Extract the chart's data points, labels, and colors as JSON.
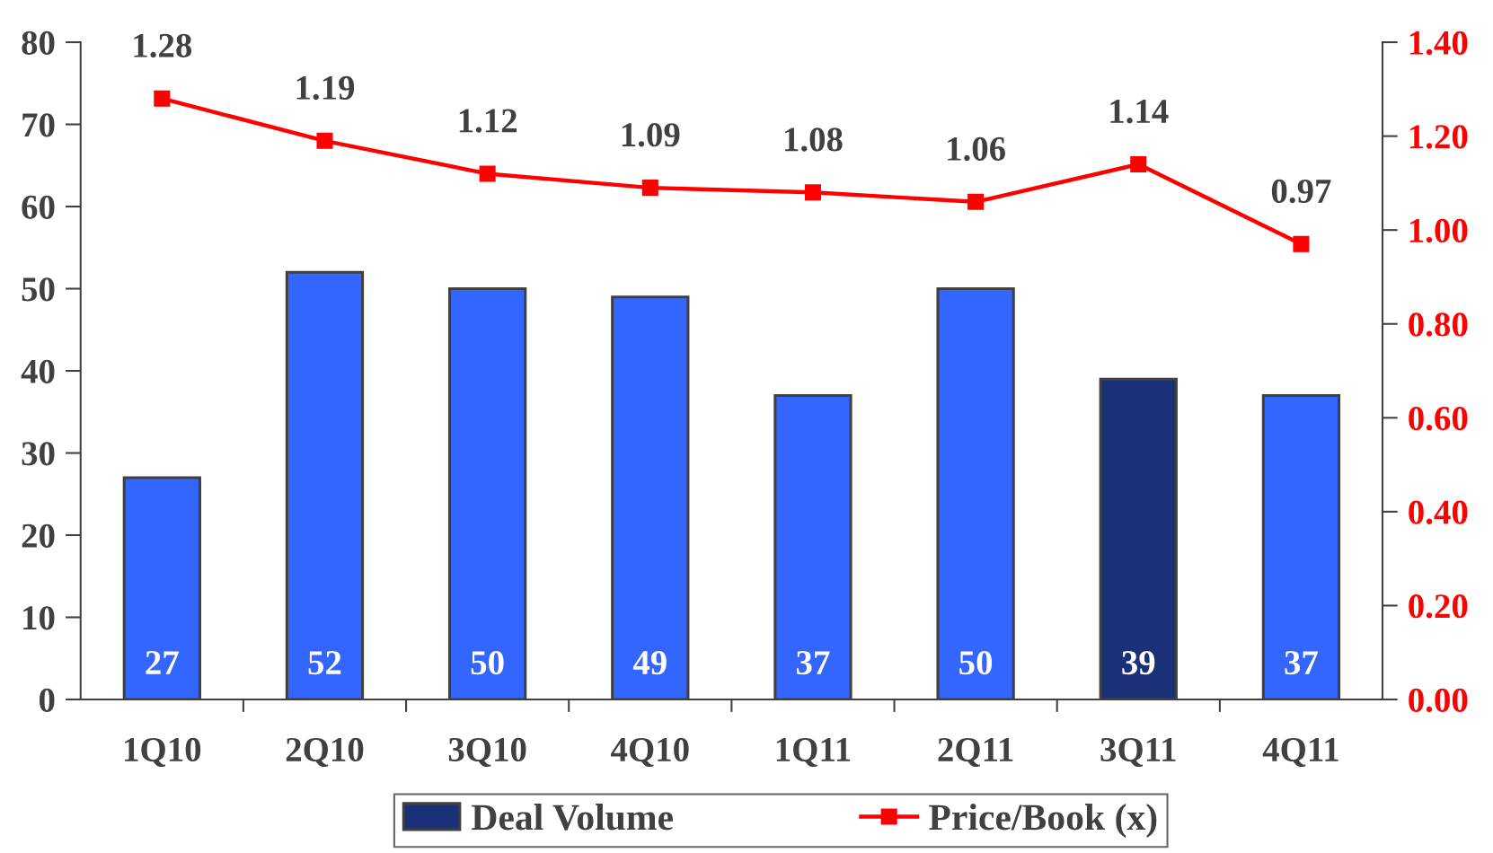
{
  "chart_data": {
    "type": "bar",
    "categories": [
      "1Q10",
      "2Q10",
      "3Q10",
      "4Q10",
      "1Q11",
      "2Q11",
      "3Q11",
      "4Q11"
    ],
    "series": [
      {
        "name": "Deal Volume",
        "color": "#1a3078",
        "colors": [
          "#3366ff",
          "#3366ff",
          "#3366ff",
          "#3366ff",
          "#3366ff",
          "#3366ff",
          "#1a3078",
          "#3366ff"
        ],
        "values": [
          27,
          52,
          50,
          49,
          37,
          50,
          39,
          37
        ]
      },
      {
        "name": "Price/Book (x)",
        "type": "line",
        "axis": "y2",
        "color": "#ff0000",
        "marker": "square",
        "line_style": "solid",
        "values": [
          1.28,
          1.19,
          1.12,
          1.09,
          1.08,
          1.06,
          1.14,
          0.97
        ]
      }
    ],
    "ylim": [
      0,
      80
    ],
    "yticks": [
      0,
      10,
      20,
      30,
      40,
      50,
      60,
      70,
      80
    ],
    "y2lim": [
      0,
      1.4
    ],
    "y2ticks": [
      {
        "value": 0,
        "label": "0.00"
      },
      {
        "value": 0.2,
        "label": "0.20"
      },
      {
        "value": 0.4,
        "label": "0.40"
      },
      {
        "value": 0.6,
        "label": "0.60"
      },
      {
        "value": 0.8,
        "label": "0.80"
      },
      {
        "value": 1.0,
        "label": "1.00"
      },
      {
        "value": 1.2,
        "label": "1.20"
      },
      {
        "value": 1.4,
        "label": "1.40"
      }
    ],
    "data_labels": true,
    "legend": "bottom",
    "grid": false
  }
}
